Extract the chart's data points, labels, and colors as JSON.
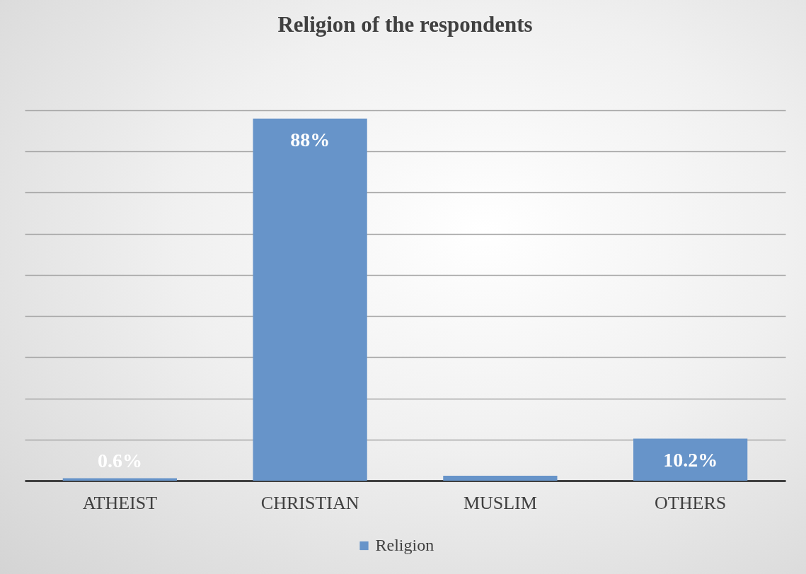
{
  "chart_data": {
    "type": "bar",
    "title": "Religion of the respondents",
    "categories": [
      "ATHEIST",
      "CHRISTIAN",
      "MUSLIM",
      "OTHERS"
    ],
    "series": [
      {
        "name": "Religion",
        "color": "#6794c9",
        "values": [
          0.6,
          88,
          1.2,
          10.2
        ],
        "value_labels": [
          "0.6%",
          "88%",
          null,
          "10.2%"
        ]
      }
    ],
    "ylim": [
      0,
      90
    ],
    "yticks": [
      {
        "value": 0,
        "label": null
      },
      {
        "value": 10,
        "label": null
      },
      {
        "value": 20,
        "label": null
      },
      {
        "value": 30,
        "label": null
      },
      {
        "value": 40,
        "label": null
      },
      {
        "value": 50,
        "label": null
      },
      {
        "value": 60,
        "label": null
      },
      {
        "value": 70,
        "label": null
      },
      {
        "value": 80,
        "label": null
      },
      {
        "value": 90,
        "label": null
      }
    ],
    "tick_labels": "x",
    "grid": "y",
    "legend": "bottom"
  }
}
